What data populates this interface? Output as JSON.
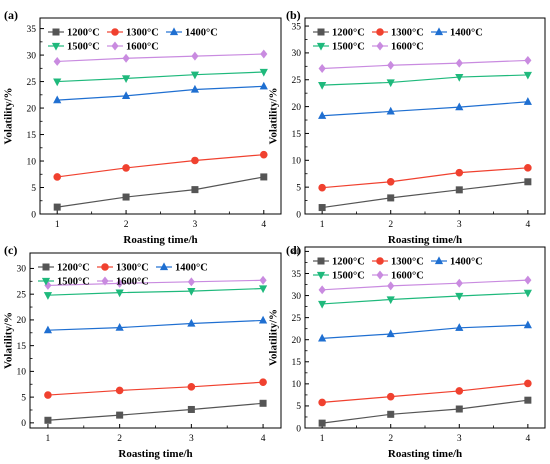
{
  "legend_labels": [
    "1200°C",
    "1300°C",
    "1400°C",
    "1500°C",
    "1600°C"
  ],
  "series_colors": [
    "#555555",
    "#f0412f",
    "#1f6fd1",
    "#1fb97c",
    "#c98be0"
  ],
  "series_markers": [
    "square",
    "circle",
    "triangle-up",
    "triangle-down",
    "diamond"
  ],
  "chart_data": [
    {
      "type": "line",
      "panel_label": "(a)",
      "xlabel": "Roasting time/h",
      "ylabel": "Volatility/%",
      "x": [
        1,
        2,
        3,
        4
      ],
      "xticks": [
        "1",
        "2",
        "3",
        "4"
      ],
      "ylim": [
        0,
        37
      ],
      "yticks": [
        "0",
        "5",
        "10",
        "15",
        "20",
        "25",
        "30",
        "35"
      ],
      "series": [
        {
          "name": "1200°C",
          "values": [
            1.3,
            3.2,
            4.6,
            7.0
          ]
        },
        {
          "name": "1300°C",
          "values": [
            7.0,
            8.7,
            10.1,
            11.2
          ]
        },
        {
          "name": "1400°C",
          "values": [
            21.5,
            22.3,
            23.5,
            24.1
          ]
        },
        {
          "name": "1500°C",
          "values": [
            25.0,
            25.6,
            26.3,
            26.8
          ]
        },
        {
          "name": "1600°C",
          "values": [
            28.8,
            29.4,
            29.8,
            30.2
          ]
        }
      ]
    },
    {
      "type": "line",
      "panel_label": "(b)",
      "xlabel": "Roasting time/h",
      "ylabel": "Volatility/%",
      "x": [
        1,
        2,
        3,
        4
      ],
      "xticks": [
        "1",
        "2",
        "3",
        "4"
      ],
      "ylim": [
        0,
        36.5
      ],
      "yticks": [
        "0",
        "5",
        "10",
        "15",
        "20",
        "25",
        "30",
        "35"
      ],
      "series": [
        {
          "name": "1200°C",
          "values": [
            1.2,
            3.0,
            4.5,
            6.0
          ]
        },
        {
          "name": "1300°C",
          "values": [
            4.9,
            6.0,
            7.7,
            8.6
          ]
        },
        {
          "name": "1400°C",
          "values": [
            18.3,
            19.1,
            19.9,
            20.9
          ]
        },
        {
          "name": "1500°C",
          "values": [
            24.0,
            24.5,
            25.5,
            25.9
          ]
        },
        {
          "name": "1600°C",
          "values": [
            27.1,
            27.7,
            28.1,
            28.6
          ]
        }
      ]
    },
    {
      "type": "line",
      "panel_label": "(c)",
      "xlabel": "Roasting time/h",
      "ylabel": "Volatility/%",
      "x": [
        1,
        2,
        3,
        4
      ],
      "xticks": [
        "1",
        "2",
        "3",
        "4"
      ],
      "ylim": [
        -1,
        33
      ],
      "yticks": [
        "0",
        "5",
        "10",
        "15",
        "20",
        "25",
        "30"
      ],
      "series": [
        {
          "name": "1200°C",
          "values": [
            0.5,
            1.5,
            2.6,
            3.8
          ]
        },
        {
          "name": "1300°C",
          "values": [
            5.4,
            6.3,
            7.0,
            7.9
          ]
        },
        {
          "name": "1400°C",
          "values": [
            18.0,
            18.5,
            19.3,
            19.9
          ]
        },
        {
          "name": "1500°C",
          "values": [
            24.8,
            25.3,
            25.6,
            26.1
          ]
        },
        {
          "name": "1600°C",
          "values": [
            26.7,
            27.1,
            27.4,
            27.7
          ]
        }
      ]
    },
    {
      "type": "line",
      "panel_label": "(d)",
      "xlabel": "Roasting time/h",
      "ylabel": "Volatility/%",
      "x": [
        1,
        2,
        3,
        4
      ],
      "xticks": [
        "1",
        "2",
        "3",
        "4"
      ],
      "ylim": [
        0,
        41
      ],
      "yticks": [
        "0",
        "5",
        "10",
        "15",
        "20",
        "25",
        "30",
        "35",
        "40"
      ],
      "series": [
        {
          "name": "1200°C",
          "values": [
            1.1,
            3.1,
            4.3,
            6.3
          ]
        },
        {
          "name": "1300°C",
          "values": [
            5.8,
            7.1,
            8.4,
            10.1
          ]
        },
        {
          "name": "1400°C",
          "values": [
            20.3,
            21.3,
            22.7,
            23.3
          ]
        },
        {
          "name": "1500°C",
          "values": [
            28.1,
            29.1,
            29.9,
            30.6
          ]
        },
        {
          "name": "1600°C",
          "values": [
            31.3,
            32.2,
            32.8,
            33.5
          ]
        }
      ]
    }
  ]
}
